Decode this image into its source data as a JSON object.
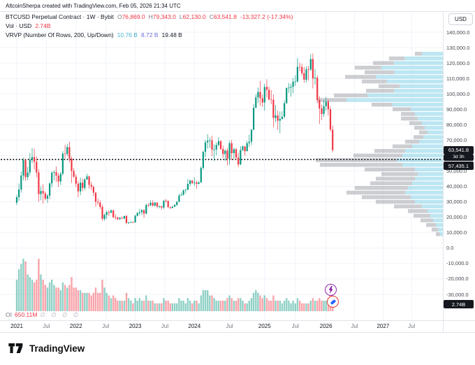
{
  "credit": "AltcoinSherpa created with TradingView.com, Feb 05, 2026 21:34 UTC",
  "legend": {
    "symbol": "BTCUSD Perpetual Contract · 1W · Bybit",
    "ohlc": [
      {
        "label": "O",
        "value": "76,869.0"
      },
      {
        "label": "H",
        "value": "79,343.0"
      },
      {
        "label": "L",
        "value": "62,130.0"
      },
      {
        "label": "C",
        "value": "63,541.8"
      }
    ],
    "change": "-13,327.2 (-17.34%)",
    "vol_label": "Vol · USD",
    "vol_value": "2.74B",
    "vrvp_label": "VRVP (Number Of Rows, 200, Up/Down)",
    "vrvp_values": [
      {
        "text": "10.76 B",
        "color": "#45b3cf"
      },
      {
        "text": "8.72 B",
        "color": "#6f6fd8"
      },
      {
        "text": "19.48 B",
        "color": "#131722"
      }
    ]
  },
  "oi": {
    "label": "OI",
    "value": "650.11M",
    "extras": [
      "∅",
      "∅",
      "∅",
      "∅"
    ]
  },
  "price_axis": {
    "currency": "USD",
    "labels": [
      140000,
      130000,
      120000,
      110000,
      100000,
      90000,
      80000,
      70000,
      50000,
      40000,
      30000,
      20000,
      10000,
      0,
      -10000,
      -20000,
      -30000
    ],
    "price_badge": "63,541.8",
    "countdown": "3d 3h",
    "line_badge": "57,435.1",
    "volume_badge": "2.74B"
  },
  "time_axis": [
    {
      "label": "2021",
      "i": 0
    },
    {
      "label": "Jul",
      "i": 13.5
    },
    {
      "label": "2022",
      "i": 27
    },
    {
      "label": "Jul",
      "i": 40.5
    },
    {
      "label": "2023",
      "i": 54
    },
    {
      "label": "Jul",
      "i": 67.5
    },
    {
      "label": "2024",
      "i": 81
    },
    {
      "label": "Jul",
      "i": 97
    },
    {
      "label": "2025",
      "i": 113
    },
    {
      "label": "Jul",
      "i": 127
    },
    {
      "label": "2026",
      "i": 141
    },
    {
      "label": "Jul",
      "i": 154
    },
    {
      "label": "2027",
      "i": 167
    },
    {
      "label": "Jul",
      "i": 180
    }
  ],
  "stickers": {
    "top": "lightning-bolt",
    "bottom": "pill"
  },
  "footer": {
    "brand": "TradingView"
  },
  "chart_data": {
    "type": "candlestick",
    "title": "BTCUSD Perpetual Contract 1W Bybit with volume and VRVP volume profile",
    "last_price": 63541.8,
    "last_open": 76869.0,
    "price_line": 57435.1,
    "ylim": [
      -30000,
      145000
    ],
    "x_unit": "biweekly candles starting Jan 2021",
    "candles_note": "each entry [close, high, low, volumeB], open = previous close (first open 29400)",
    "candles": [
      [
        33000,
        34500,
        28000,
        12
      ],
      [
        38000,
        42000,
        30500,
        16
      ],
      [
        47000,
        49500,
        36000,
        18
      ],
      [
        57000,
        58500,
        44000,
        20
      ],
      [
        46000,
        58000,
        43500,
        19
      ],
      [
        49000,
        52500,
        44000,
        14
      ],
      [
        57000,
        61800,
        47000,
        13
      ],
      [
        59000,
        64900,
        55000,
        12
      ],
      [
        56000,
        64500,
        51000,
        11
      ],
      [
        49000,
        59500,
        46000,
        12
      ],
      [
        35000,
        51000,
        30000,
        20
      ],
      [
        37000,
        40000,
        31000,
        14
      ],
      [
        35500,
        41300,
        28800,
        12
      ],
      [
        32000,
        36600,
        31000,
        10
      ],
      [
        34000,
        35000,
        29300,
        9
      ],
      [
        42000,
        42600,
        31700,
        11
      ],
      [
        48900,
        49800,
        39500,
        12
      ],
      [
        49300,
        50500,
        44000,
        10
      ],
      [
        47000,
        52900,
        42800,
        9
      ],
      [
        43200,
        48800,
        39600,
        9
      ],
      [
        48200,
        49200,
        40800,
        8
      ],
      [
        61300,
        62900,
        47000,
        11
      ],
      [
        61000,
        67000,
        58100,
        10
      ],
      [
        65500,
        67600,
        59500,
        9
      ],
      [
        58000,
        69000,
        55600,
        10
      ],
      [
        50000,
        59400,
        42300,
        13
      ],
      [
        46300,
        51900,
        45500,
        9
      ],
      [
        41700,
        48000,
        39600,
        9
      ],
      [
        36800,
        43500,
        33000,
        8
      ],
      [
        42400,
        45800,
        34300,
        8
      ],
      [
        39000,
        45100,
        37000,
        7
      ],
      [
        44500,
        45400,
        37600,
        7
      ],
      [
        46500,
        48200,
        44200,
        7
      ],
      [
        41000,
        47000,
        38500,
        7
      ],
      [
        39700,
        43000,
        37700,
        6
      ],
      [
        36000,
        40600,
        33800,
        7
      ],
      [
        30000,
        36100,
        26700,
        9
      ],
      [
        29500,
        32200,
        28000,
        7
      ],
      [
        26700,
        31000,
        25300,
        7
      ],
      [
        19000,
        28100,
        17600,
        12
      ],
      [
        21500,
        22500,
        17700,
        9
      ],
      [
        23300,
        24300,
        18800,
        7
      ],
      [
        22800,
        24600,
        20700,
        6
      ],
      [
        24400,
        25200,
        22800,
        5
      ],
      [
        20000,
        25000,
        19500,
        6
      ],
      [
        19800,
        21800,
        18500,
        5
      ],
      [
        18800,
        20400,
        18100,
        4
      ],
      [
        19600,
        20200,
        18200,
        4
      ],
      [
        19200,
        20400,
        18900,
        4
      ],
      [
        20800,
        21000,
        18600,
        4
      ],
      [
        16300,
        21500,
        15500,
        7
      ],
      [
        16500,
        17200,
        15700,
        5
      ],
      [
        16800,
        17400,
        16200,
        4
      ],
      [
        16600,
        17300,
        16300,
        3
      ],
      [
        21000,
        21600,
        16500,
        5
      ],
      [
        22700,
        23400,
        20500,
        4
      ],
      [
        23300,
        25200,
        21400,
        5
      ],
      [
        24600,
        25300,
        21500,
        4
      ],
      [
        22400,
        25200,
        19600,
        4
      ],
      [
        28000,
        28800,
        21900,
        6
      ],
      [
        27800,
        29200,
        26600,
        4
      ],
      [
        29400,
        31000,
        27200,
        4
      ],
      [
        27600,
        31000,
        26900,
        4
      ],
      [
        29500,
        30000,
        26800,
        3
      ],
      [
        26900,
        29800,
        25900,
        3
      ],
      [
        27100,
        27700,
        25800,
        3
      ],
      [
        26300,
        27400,
        24800,
        3
      ],
      [
        30600,
        31400,
        25400,
        5
      ],
      [
        30500,
        31800,
        29500,
        4
      ],
      [
        26600,
        31000,
        26000,
        4
      ],
      [
        26000,
        26900,
        25300,
        3
      ],
      [
        26900,
        27500,
        25900,
        3
      ],
      [
        28000,
        28600,
        26500,
        3
      ],
      [
        30000,
        30300,
        27200,
        3
      ],
      [
        34100,
        35200,
        29800,
        5
      ],
      [
        34500,
        36000,
        33900,
        4
      ],
      [
        37400,
        38000,
        34100,
        4
      ],
      [
        37800,
        38400,
        35600,
        3
      ],
      [
        41600,
        44700,
        37700,
        5
      ],
      [
        43800,
        44400,
        40200,
        4
      ],
      [
        42200,
        44000,
        41500,
        3
      ],
      [
        42600,
        45900,
        40300,
        4
      ],
      [
        41700,
        43800,
        38500,
        4
      ],
      [
        42600,
        43400,
        41400,
        3
      ],
      [
        52000,
        52900,
        42200,
        6
      ],
      [
        62400,
        63000,
        50900,
        8
      ],
      [
        68500,
        70200,
        59000,
        8
      ],
      [
        69600,
        73800,
        64500,
        8
      ],
      [
        69900,
        71700,
        64900,
        6
      ],
      [
        63800,
        72800,
        59600,
        6
      ],
      [
        63900,
        67200,
        56500,
        5
      ],
      [
        66900,
        68400,
        60200,
        4
      ],
      [
        69300,
        71900,
        66100,
        4
      ],
      [
        64300,
        70000,
        63400,
        4
      ],
      [
        61000,
        66500,
        58400,
        4
      ],
      [
        63200,
        64000,
        56500,
        4
      ],
      [
        58000,
        65000,
        53500,
        5
      ],
      [
        68000,
        69400,
        54000,
        6
      ],
      [
        61500,
        70100,
        57100,
        5
      ],
      [
        64100,
        65100,
        57900,
        4
      ],
      [
        58700,
        65000,
        57200,
        4
      ],
      [
        54200,
        61800,
        52600,
        5
      ],
      [
        63600,
        66000,
        53900,
        5
      ],
      [
        65900,
        66500,
        62800,
        4
      ],
      [
        62800,
        66300,
        59900,
        3
      ],
      [
        68000,
        69500,
        65200,
        3
      ],
      [
        69000,
        73600,
        65600,
        4
      ],
      [
        76700,
        77300,
        66800,
        5
      ],
      [
        91000,
        93500,
        76500,
        7
      ],
      [
        97700,
        99800,
        90800,
        8
      ],
      [
        101200,
        104000,
        94200,
        7
      ],
      [
        97200,
        108300,
        92200,
        6
      ],
      [
        94400,
        99500,
        91500,
        5
      ],
      [
        104500,
        106500,
        89200,
        6
      ],
      [
        102600,
        109400,
        97800,
        5
      ],
      [
        96500,
        104800,
        95700,
        4
      ],
      [
        96200,
        102500,
        93300,
        4
      ],
      [
        84400,
        99500,
        78200,
        6
      ],
      [
        86000,
        92800,
        81600,
        4
      ],
      [
        82600,
        89300,
        76600,
        4
      ],
      [
        83800,
        88500,
        74500,
        4
      ],
      [
        85200,
        88800,
        83100,
        3
      ],
      [
        94000,
        95800,
        83900,
        4
      ],
      [
        103800,
        104300,
        93400,
        5
      ],
      [
        104000,
        107100,
        100700,
        4
      ],
      [
        104600,
        106500,
        98200,
        3
      ],
      [
        107800,
        110300,
        100400,
        4
      ],
      [
        108000,
        112000,
        105200,
        3
      ],
      [
        117500,
        123200,
        107300,
        5
      ],
      [
        117400,
        120200,
        114700,
        4
      ],
      [
        113400,
        119500,
        111900,
        3
      ],
      [
        109200,
        117400,
        107300,
        3
      ],
      [
        115900,
        117900,
        107200,
        3
      ],
      [
        115800,
        118000,
        108600,
        3
      ],
      [
        122600,
        125700,
        114900,
        4
      ],
      [
        110000,
        126200,
        103500,
        5
      ],
      [
        110500,
        116000,
        106000,
        4
      ],
      [
        96000,
        112000,
        94000,
        4
      ],
      [
        90500,
        98500,
        80500,
        5
      ],
      [
        87000,
        93000,
        83000,
        4
      ],
      [
        92000,
        96000,
        85000,
        4
      ],
      [
        95000,
        98000,
        89000,
        4
      ],
      [
        90000,
        96500,
        86000,
        5
      ],
      [
        76869,
        92000,
        75500,
        6
      ],
      [
        63541.8,
        79343,
        62130,
        6
      ]
    ],
    "profile_rows_note": "each entry [price, upLengthPx, downLengthPx] anchored to right edge",
    "profile_rows": [
      [
        126000,
        30,
        10
      ],
      [
        123000,
        55,
        22
      ],
      [
        120000,
        70,
        30
      ],
      [
        117000,
        88,
        38
      ],
      [
        114000,
        70,
        42
      ],
      [
        111000,
        96,
        44
      ],
      [
        108000,
        80,
        36
      ],
      [
        105000,
        62,
        30
      ],
      [
        102000,
        70,
        40
      ],
      [
        99000,
        108,
        48
      ],
      [
        96000,
        138,
        42
      ],
      [
        93000,
        72,
        30
      ],
      [
        90000,
        46,
        26
      ],
      [
        87000,
        40,
        20
      ],
      [
        84000,
        36,
        24
      ],
      [
        81000,
        30,
        18
      ],
      [
        78000,
        26,
        15
      ],
      [
        75000,
        22,
        12
      ],
      [
        72000,
        28,
        14
      ],
      [
        69000,
        34,
        20
      ],
      [
        66000,
        44,
        28
      ],
      [
        63000,
        54,
        44
      ],
      [
        60000,
        58,
        70
      ],
      [
        57000,
        66,
        116
      ],
      [
        54000,
        58,
        118
      ],
      [
        51000,
        40,
        72
      ],
      [
        48000,
        36,
        52
      ],
      [
        45000,
        40,
        56
      ],
      [
        42000,
        44,
        60
      ],
      [
        39000,
        50,
        76
      ],
      [
        36000,
        54,
        84
      ],
      [
        33000,
        46,
        70
      ],
      [
        30000,
        40,
        56
      ],
      [
        27000,
        30,
        40
      ],
      [
        24000,
        22,
        28
      ],
      [
        21000,
        18,
        24
      ],
      [
        18000,
        14,
        18
      ],
      [
        15000,
        10,
        14
      ],
      [
        12000,
        7,
        9
      ],
      [
        9000,
        4,
        6
      ]
    ]
  }
}
